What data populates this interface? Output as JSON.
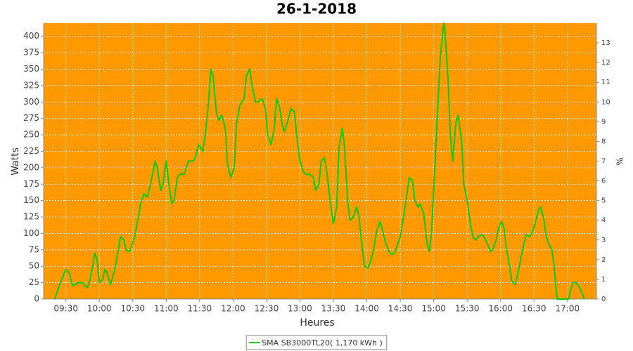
{
  "chart_data": {
    "type": "line",
    "title": "26-1-2018",
    "xlabel": "Heures",
    "ylabel": "Watts",
    "y2label": "%",
    "x": [
      "09:20",
      "09:25",
      "09:30",
      "09:33",
      "09:36",
      "09:41",
      "09:45",
      "09:49",
      "09:51",
      "09:54",
      "09:56",
      "09:58",
      "10:00",
      "10:03",
      "10:05",
      "10:07",
      "10:10",
      "10:14",
      "10:17",
      "10:19",
      "10:22",
      "10:24",
      "10:27",
      "10:31",
      "10:34",
      "10:37",
      "10:40",
      "10:43",
      "10:46",
      "10:50",
      "10:52",
      "10:55",
      "10:57",
      "11:00",
      "11:02",
      "11:05",
      "11:07",
      "11:10",
      "11:12",
      "11:16",
      "11:20",
      "11:24",
      "11:26",
      "11:29",
      "11:33",
      "11:35",
      "11:38",
      "11:40",
      "11:42",
      "11:45",
      "11:47",
      "11:50",
      "11:53",
      "11:55",
      "11:58",
      "12:01",
      "12:03",
      "12:06",
      "12:10",
      "12:12",
      "12:15",
      "12:17",
      "12:20",
      "12:22",
      "12:26",
      "12:29",
      "12:31",
      "12:34",
      "12:37",
      "12:39",
      "12:42",
      "12:44",
      "12:46",
      "12:49",
      "12:52",
      "12:55",
      "12:57",
      "13:00",
      "13:03",
      "13:05",
      "13:09",
      "13:12",
      "13:14",
      "13:17",
      "13:19",
      "13:22",
      "13:24",
      "13:27",
      "13:30",
      "13:33",
      "13:35",
      "13:38",
      "13:40",
      "13:43",
      "13:45",
      "13:48",
      "13:51",
      "13:53",
      "13:56",
      "13:58",
      "14:01",
      "14:03",
      "14:06",
      "14:09",
      "14:12",
      "14:14",
      "14:17",
      "14:20",
      "14:22",
      "14:25",
      "14:27",
      "14:30",
      "14:33",
      "14:36",
      "14:38",
      "14:41",
      "14:43",
      "14:46",
      "14:48",
      "14:51",
      "14:54",
      "14:56",
      "14:58",
      "15:01",
      "15:03",
      "15:06",
      "15:09",
      "15:10",
      "15:13",
      "15:15",
      "15:17",
      "15:20",
      "15:22",
      "15:25",
      "15:27",
      "15:30",
      "15:33",
      "15:35",
      "15:38",
      "15:40",
      "15:43",
      "15:45",
      "15:48",
      "15:51",
      "15:53",
      "15:56",
      "15:58",
      "16:01",
      "16:03",
      "16:05",
      "16:08",
      "16:10",
      "16:13",
      "16:15",
      "16:18",
      "16:21",
      "16:23",
      "16:26",
      "16:28",
      "16:31",
      "16:34",
      "16:36",
      "16:39",
      "16:41",
      "16:43",
      "16:46",
      "16:48",
      "16:50",
      "16:51",
      "16:56",
      "17:01",
      "17:03",
      "17:05",
      "17:08",
      "17:10",
      "17:13",
      "17:15"
    ],
    "series": [
      {
        "name": "SMA SB3000TL20( 1,170 kWh )",
        "color": "#00cc00",
        "values": [
          0,
          25,
          45,
          40,
          20,
          25,
          25,
          17,
          25,
          50,
          70,
          60,
          25,
          30,
          45,
          40,
          22,
          45,
          75,
          95,
          90,
          75,
          72,
          90,
          115,
          145,
          160,
          155,
          175,
          210,
          200,
          165,
          175,
          210,
          180,
          145,
          150,
          185,
          190,
          190,
          210,
          210,
          215,
          235,
          225,
          250,
          300,
          350,
          340,
          285,
          272,
          280,
          260,
          205,
          185,
          200,
          265,
          295,
          305,
          340,
          350,
          325,
          300,
          300,
          305,
          290,
          250,
          235,
          260,
          305,
          290,
          265,
          255,
          270,
          290,
          285,
          250,
          210,
          195,
          190,
          190,
          185,
          165,
          175,
          210,
          215,
          195,
          150,
          115,
          140,
          230,
          260,
          230,
          145,
          120,
          125,
          140,
          125,
          75,
          50,
          47,
          55,
          75,
          105,
          118,
          105,
          85,
          72,
          68,
          70,
          80,
          95,
          125,
          160,
          185,
          180,
          150,
          140,
          145,
          130,
          85,
          72,
          100,
          200,
          270,
          370,
          420,
          410,
          330,
          250,
          210,
          270,
          280,
          240,
          175,
          150,
          115,
          95,
          90,
          95,
          98,
          95,
          85,
          72,
          75,
          90,
          107,
          118,
          108,
          80,
          50,
          28,
          22,
          35,
          60,
          85,
          98,
          95,
          100,
          115,
          135,
          140,
          120,
          95,
          85,
          75,
          50,
          10,
          0,
          0,
          0,
          15,
          25,
          25,
          20,
          10,
          0
        ]
      }
    ],
    "xlim": [
      "09:10",
      "17:26"
    ],
    "xticks": [
      "09:30",
      "10:00",
      "10:30",
      "11:00",
      "11:30",
      "12:00",
      "12:30",
      "13:00",
      "13:30",
      "14:00",
      "14:30",
      "15:00",
      "15:30",
      "16:00",
      "16:30",
      "17:00"
    ],
    "ylim": [
      0,
      420
    ],
    "yticks": [
      0,
      25,
      50,
      75,
      100,
      125,
      150,
      175,
      200,
      225,
      250,
      275,
      300,
      325,
      350,
      375,
      400
    ],
    "y2lim": [
      0,
      14
    ],
    "y2ticks": [
      0,
      1,
      2,
      3,
      4,
      5,
      6,
      7,
      8,
      9,
      10,
      11,
      12,
      13
    ],
    "grid": true,
    "background": "#ff9900",
    "legend": "bottom"
  }
}
